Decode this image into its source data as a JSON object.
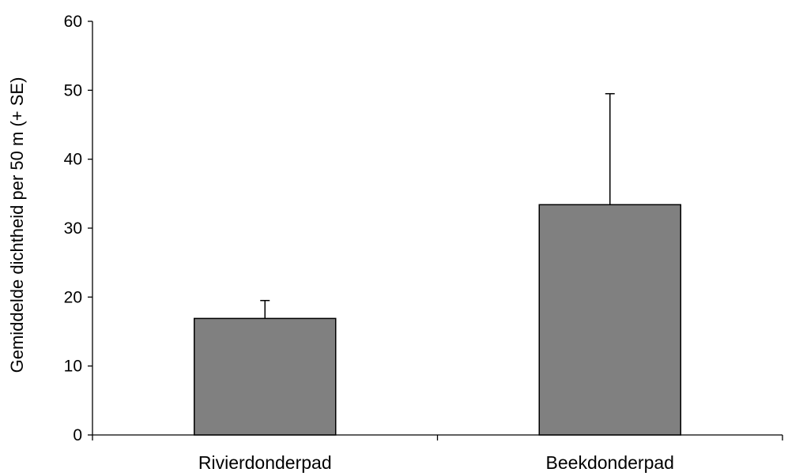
{
  "chart_data": {
    "type": "bar",
    "title": "",
    "xlabel": "",
    "ylabel": "Gemiddelde dichtheid per 50 m (+ SE)",
    "categories": [
      "Rivierdonderpad",
      "Beekdonderpad"
    ],
    "values": [
      16.9,
      33.4
    ],
    "error_plus": [
      2.6,
      16.1
    ],
    "ylim": [
      0,
      60
    ],
    "yticks": [
      "0",
      "10",
      "20",
      "30",
      "40",
      "50",
      "60"
    ],
    "ytick_values": [
      0,
      10,
      20,
      30,
      40,
      50,
      60
    ],
    "grid": false,
    "legend": "none",
    "bar_color": "#808080",
    "bar_edge_color": "#000000"
  }
}
